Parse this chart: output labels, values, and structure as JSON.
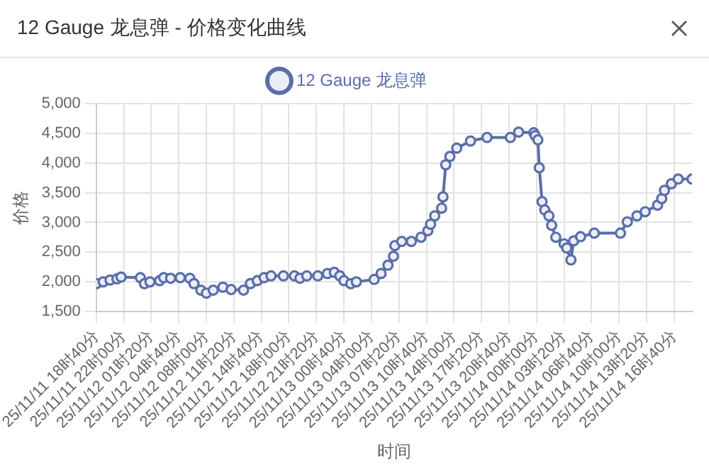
{
  "chart_data": {
    "type": "line",
    "title": "12 Gauge 龙息弹 - 价格变化曲线",
    "xlabel": "时间",
    "ylabel": "价格",
    "legend": "top",
    "grid": true,
    "marker": "circle",
    "x": [
      "--11-11T18:40",
      "--11-11T19:30",
      "--11-11T20:20",
      "--11-11T21:10",
      "--11-11T21:40",
      "--11-12T00:00",
      "--11-12T00:30",
      "--11-12T01:10",
      "--11-12T02:20",
      "--11-12T02:50",
      "--11-12T03:40",
      "--11-12T04:50",
      "--11-12T06:00",
      "--11-12T06:30",
      "--11-12T07:20",
      "--11-12T08:00",
      "--11-12T08:50",
      "--11-12T10:00",
      "--11-12T11:00",
      "--11-12T12:30",
      "--11-12T13:20",
      "--11-12T14:10",
      "--11-12T15:00",
      "--11-12T15:50",
      "--11-12T17:20",
      "--11-12T18:40",
      "--11-12T19:20",
      "--11-12T20:10",
      "--11-12T21:30",
      "--11-12T22:40",
      "--11-12T23:30",
      "--11-13T00:10",
      "--11-13T00:40",
      "--11-13T01:30",
      "--11-13T02:10",
      "--11-13T04:20",
      "--11-13T05:10",
      "--11-13T06:00",
      "--11-13T06:40",
      "--11-13T06:50",
      "--11-13T07:40",
      "--11-13T08:50",
      "--11-13T10:00",
      "--11-13T10:50",
      "--11-13T11:10",
      "--11-13T11:40",
      "--11-13T12:30",
      "--11-13T12:40",
      "--11-13T13:00",
      "--11-13T13:30",
      "--11-13T14:20",
      "--11-13T16:00",
      "--11-13T18:00",
      "--11-13T20:50",
      "--11-13T21:50",
      "--11-13T23:40",
      "--11-13T23:50",
      "--11-14T00:10",
      "--11-14T00:20",
      "--11-14T00:40",
      "--11-14T01:00",
      "--11-14T01:30",
      "--11-14T01:50",
      "--11-14T02:20",
      "--11-14T03:20",
      "--11-14T03:40",
      "--11-14T04:10",
      "--11-14T04:30",
      "--11-14T05:20",
      "--11-14T07:00",
      "--11-14T10:10",
      "--11-14T11:00",
      "--11-14T12:10",
      "--11-14T13:10",
      "--11-14T14:40",
      "--11-14T15:10",
      "--11-14T15:30",
      "--11-14T16:20",
      "--11-14T17:10",
      "--11-14T18:50"
    ],
    "series": [
      {
        "name": "12 Gauge 龙息弹",
        "color": "#5a6ea8",
        "values": [
          1970,
          2000,
          2030,
          2050,
          2080,
          2070,
          1970,
          2000,
          2020,
          2070,
          2060,
          2070,
          2060,
          1970,
          1860,
          1810,
          1860,
          1910,
          1870,
          1860,
          1970,
          2020,
          2070,
          2100,
          2100,
          2100,
          2060,
          2100,
          2100,
          2140,
          2160,
          2100,
          2020,
          1970,
          2000,
          2040,
          2140,
          2280,
          2430,
          2610,
          2680,
          2680,
          2750,
          2860,
          2970,
          3110,
          3240,
          3430,
          3970,
          4110,
          4250,
          4370,
          4430,
          4430,
          4520,
          4510,
          4460,
          4390,
          3920,
          3350,
          3210,
          3110,
          2950,
          2750,
          2640,
          2570,
          2370,
          2690,
          2760,
          2820,
          2820,
          3010,
          3110,
          3180,
          3290,
          3400,
          3540,
          3650,
          3730,
          3730
        ]
      }
    ],
    "xlim": [
      "--11-11T18:40",
      "--11-14T18:50"
    ],
    "xticks": [
      {
        "value": "--11-11T18:40",
        "label": "25/11/11 18时40分"
      },
      {
        "value": "--11-11T22:00",
        "label": "25/11/11 22时00分"
      },
      {
        "value": "--11-12T01:20",
        "label": "25/11/12 01时20分"
      },
      {
        "value": "--11-12T04:40",
        "label": "25/11/12 04时40分"
      },
      {
        "value": "--11-12T08:00",
        "label": "25/11/12 08时00分"
      },
      {
        "value": "--11-12T11:20",
        "label": "25/11/12 11时20分"
      },
      {
        "value": "--11-12T14:40",
        "label": "25/11/12 14时40分"
      },
      {
        "value": "--11-12T18:00",
        "label": "25/11/12 18时00分"
      },
      {
        "value": "--11-12T21:20",
        "label": "25/11/12 21时20分"
      },
      {
        "value": "--11-13T00:40",
        "label": "25/11/13 00时40分"
      },
      {
        "value": "--11-13T04:00",
        "label": "25/11/13 04时00分"
      },
      {
        "value": "--11-13T07:20",
        "label": "25/11/13 07时20分"
      },
      {
        "value": "--11-13T10:40",
        "label": "25/11/13 10时40分"
      },
      {
        "value": "--11-13T14:00",
        "label": "25/11/13 14时00分"
      },
      {
        "value": "--11-13T17:20",
        "label": "25/11/13 17时20分"
      },
      {
        "value": "--11-13T20:40",
        "label": "25/11/13 20时40分"
      },
      {
        "value": "--11-14T00:00",
        "label": "25/11/14 00时00分"
      },
      {
        "value": "--11-14T03:20",
        "label": "25/11/14 03时20分"
      },
      {
        "value": "--11-14T06:40",
        "label": "25/11/14 06时40分"
      },
      {
        "value": "--11-14T10:00",
        "label": "25/11/14 10时00分"
      },
      {
        "value": "--11-14T13:20",
        "label": "25/11/14 13时20分"
      },
      {
        "value": "--11-14T16:40",
        "label": "25/11/14 16时40分"
      }
    ],
    "ylim": [
      1500,
      5000
    ],
    "yticks": [
      {
        "value": 1500,
        "label": "1,500"
      },
      {
        "value": 2000,
        "label": "2,000"
      },
      {
        "value": 2500,
        "label": "2,500"
      },
      {
        "value": 3000,
        "label": "3,000"
      },
      {
        "value": 3500,
        "label": "3,500"
      },
      {
        "value": 4000,
        "label": "4,000"
      },
      {
        "value": 4500,
        "label": "4,500"
      },
      {
        "value": 5000,
        "label": "5,000"
      }
    ]
  }
}
